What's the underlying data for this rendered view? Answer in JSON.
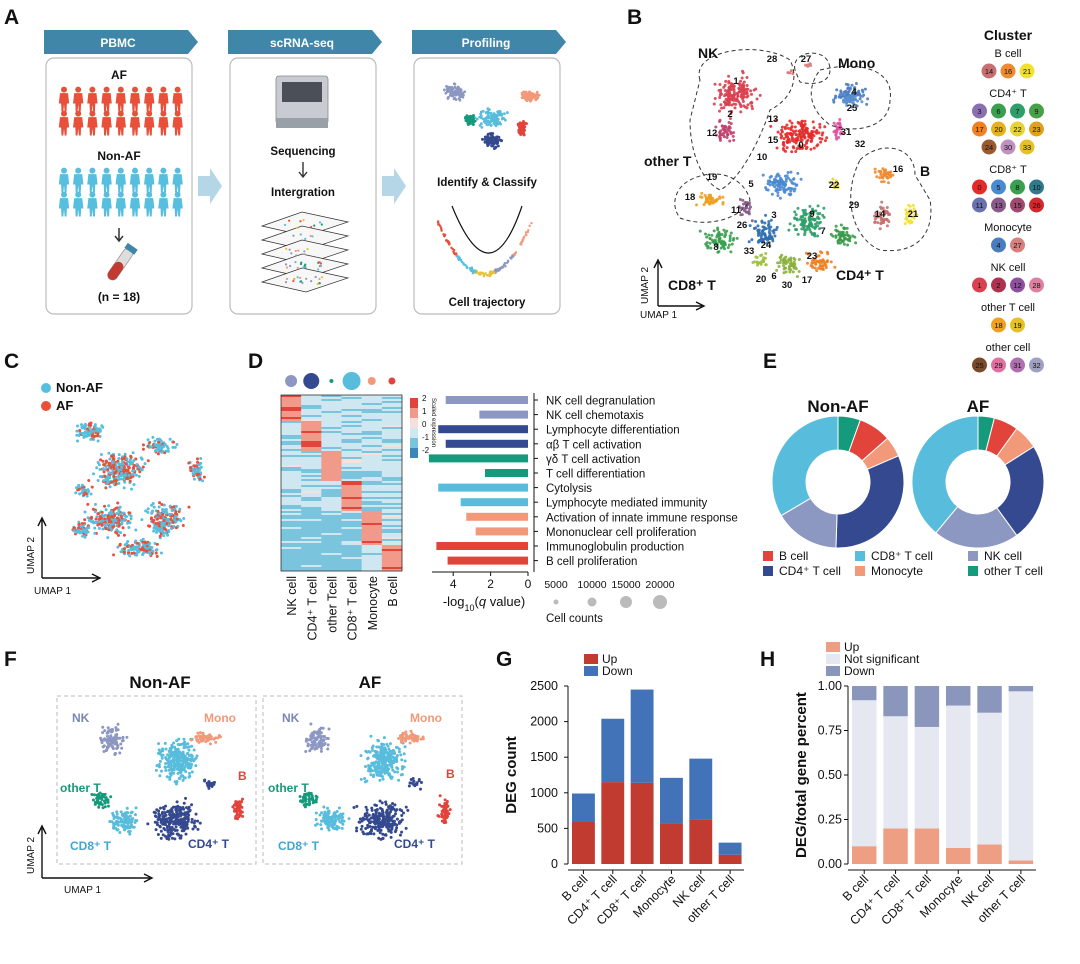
{
  "panels": {
    "a": "A",
    "b": "B",
    "c": "C",
    "d": "D",
    "e": "E",
    "f": "F",
    "g": "G",
    "h": "H"
  },
  "colors": {
    "b_cell": "#e2433a",
    "cd4": "#34498f",
    "cd8": "#58bcdc",
    "mono": "#f2997a",
    "nk": "#8c97c2",
    "other_t": "#159a7c",
    "af": "#e8503a",
    "non_af": "#56bfe0",
    "up": "#c23b30",
    "down": "#4272b8"
  },
  "panel_a": {
    "steps": [
      "PBMC",
      "scRNA-seq",
      "Profiling"
    ],
    "af_label": "AF",
    "non_af_label": "Non-AF",
    "n_label": "(n = 18)",
    "sequencing": "Sequencing",
    "integration": "Intergration",
    "identify": "Identify & Classify",
    "trajectory": "Cell trajectory"
  },
  "panel_b": {
    "legend_title": "Cluster",
    "groups": [
      {
        "name": "B cell",
        "ids": [
          "14",
          "16",
          "21"
        ]
      },
      {
        "name": "CD4⁺ T",
        "ids": [
          "3",
          "6",
          "7",
          "9",
          "17",
          "20",
          "22",
          "23",
          "24",
          "30",
          "33"
        ]
      },
      {
        "name": "CD8⁺ T",
        "ids": [
          "0",
          "5",
          "8",
          "10",
          "11",
          "13",
          "15",
          "26"
        ]
      },
      {
        "name": "Monocyte",
        "ids": [
          "4",
          "27"
        ]
      },
      {
        "name": "NK cell",
        "ids": [
          "1",
          "2",
          "12",
          "28"
        ]
      },
      {
        "name": "other T cell",
        "ids": [
          "18",
          "19"
        ]
      },
      {
        "name": "other  cell",
        "ids": [
          "25",
          "29",
          "31",
          "32"
        ]
      }
    ],
    "region_labels": {
      "nk": "NK",
      "mono": "Mono",
      "other_t": "other T",
      "b": "B",
      "cd8": "CD8⁺ T",
      "cd4": "CD4⁺ T"
    },
    "cluster_numbers": [
      "28",
      "27",
      "1",
      "4",
      "25",
      "2",
      "13",
      "15",
      "12",
      "0",
      "31",
      "32",
      "10",
      "19",
      "16",
      "5",
      "22",
      "18",
      "29",
      "3",
      "9",
      "11",
      "26",
      "7",
      "8",
      "33",
      "24",
      "23",
      "20",
      "6",
      "30",
      "17",
      "14",
      "21"
    ],
    "axis_x": "UMAP 1",
    "axis_y": "UMAP 2"
  },
  "panel_c": {
    "legend": [
      "Non-AF",
      "AF"
    ],
    "axis_x": "UMAP 1",
    "axis_y": "UMAP 2"
  },
  "panel_d": {
    "heatmap_columns": [
      "NK cell",
      "CD4⁺ T cell",
      "other Tcell",
      "CD8⁺ T cell",
      "Monocyte",
      "B cell"
    ],
    "scale_title": "Scaled expression",
    "scale_ticks": [
      "2",
      "1",
      "0",
      "-1",
      "-2"
    ],
    "size_legend_title": "Cell counts",
    "size_legend_values": [
      "5000",
      "10000",
      "15000",
      "20000"
    ]
  },
  "panel_e": {
    "titles": [
      "Non-AF",
      "AF"
    ],
    "legend": [
      "B cell",
      "CD8⁺ T cell",
      "NK cell",
      "CD4⁺ T cell",
      "Monocyte",
      "other T cell"
    ]
  },
  "panel_f": {
    "titles": [
      "Non-AF",
      "AF"
    ],
    "labels": {
      "nk": "NK",
      "mono": "Mono",
      "other_t": "other T",
      "b": "B",
      "cd8": "CD8⁺ T",
      "cd4": "CD4⁺ T"
    },
    "axis_x": "UMAP 1",
    "axis_y": "UMAP 2"
  },
  "chart_data": [
    {
      "type": "bar",
      "panel": "D",
      "orientation": "horizontal",
      "categories": [
        "NK cell degranulation",
        "NK cell chemotaxis",
        "Lymphocyte differentiation",
        "αβ T cell activation",
        "γδ T cell activation",
        "T cell differentiation",
        "Cytolysis",
        "Lymphocyte mediated immunity",
        "Activation of innate immune response",
        "Mononuclear cell proliferation",
        "Immunoglobulin production",
        "B cell proliferation"
      ],
      "values": [
        4.4,
        2.6,
        4.8,
        4.4,
        5.3,
        2.3,
        4.8,
        3.6,
        3.3,
        2.8,
        4.9,
        4.3
      ],
      "bar_colors": [
        "#8c97c2",
        "#8c97c2",
        "#34498f",
        "#34498f",
        "#159a7c",
        "#159a7c",
        "#58bcdc",
        "#58bcdc",
        "#f2997a",
        "#f2997a",
        "#e2433a",
        "#e2433a"
      ],
      "xlabel": "-log10(q value)",
      "xlabel_parts": [
        "-log",
        "10",
        "(",
        "q",
        " value)"
      ],
      "xlim": [
        0,
        5.2
      ],
      "xticks": [
        "4",
        "2",
        "0"
      ]
    },
    {
      "type": "pie",
      "panel": "E",
      "title": "Non-AF",
      "categories": [
        "other T cell",
        "B cell",
        "Monocyte",
        "CD4⁺ T cell",
        "NK cell",
        "CD8⁺ T cell"
      ],
      "values": [
        5.5,
        8,
        5,
        32,
        16,
        33.5
      ]
    },
    {
      "type": "pie",
      "panel": "E",
      "title": "AF",
      "categories": [
        "other T cell",
        "B cell",
        "Monocyte",
        "CD4⁺ T cell",
        "NK cell",
        "CD8⁺ T cell"
      ],
      "values": [
        4,
        6,
        6,
        24,
        21,
        39
      ]
    },
    {
      "type": "bar",
      "panel": "G",
      "stacked": true,
      "categories": [
        "B cell",
        "CD4⁺ T cell",
        "CD8⁺ T cell",
        "Monocyte",
        "NK cell",
        "other T cell"
      ],
      "series": [
        {
          "name": "Up",
          "values": [
            590,
            1150,
            1140,
            570,
            630,
            130
          ]
        },
        {
          "name": "Down",
          "values": [
            400,
            890,
            1310,
            640,
            850,
            170
          ]
        }
      ],
      "ylabel": "DEG count",
      "ylim": [
        0,
        2500
      ],
      "yticks": [
        "0",
        "500",
        "1000",
        "1500",
        "2000",
        "2500"
      ]
    },
    {
      "type": "bar",
      "panel": "H",
      "stacked": true,
      "categories": [
        "B cell",
        "CD4⁺ T cell",
        "CD8⁺ T cell",
        "Monocyte",
        "NK cell",
        "other T cell"
      ],
      "series": [
        {
          "name": "Up",
          "values": [
            0.1,
            0.2,
            0.2,
            0.09,
            0.11,
            0.02
          ]
        },
        {
          "name": "Not significant",
          "values": [
            0.82,
            0.63,
            0.57,
            0.8,
            0.74,
            0.95
          ]
        },
        {
          "name": "Down",
          "values": [
            0.08,
            0.17,
            0.23,
            0.11,
            0.15,
            0.03
          ]
        }
      ],
      "ylabel": "DEG/total gene percent",
      "ylim": [
        0,
        1
      ],
      "yticks": [
        "0.00",
        "0.25",
        "0.50",
        "0.75",
        "1.00"
      ]
    }
  ]
}
